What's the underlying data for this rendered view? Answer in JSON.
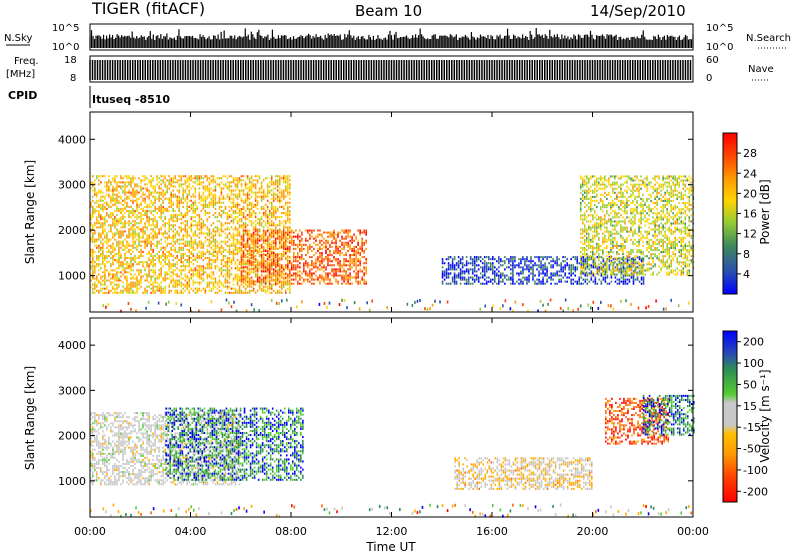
{
  "header": {
    "station": "TIGER (fitACF)",
    "beam": "Beam 10",
    "date": "14/Sep/2010"
  },
  "nsky": {
    "label": "N.Sky",
    "tick_top": "10^5",
    "tick_bottom": "10^0",
    "right_label": "N.Search",
    "right_top": "10^5",
    "right_bottom": "10^0"
  },
  "freq": {
    "label_line1": "Freq.",
    "label_line2": "[MHz]",
    "tick_top": "18",
    "tick_bottom": "8",
    "right_top": "60",
    "right_bottom": "0",
    "right_label": "Nave"
  },
  "cpid": {
    "label": "CPID",
    "value": "Ituseq -8510"
  },
  "chart_data": [
    {
      "type": "heatmap",
      "title": "",
      "xlabel": "Time UT",
      "ylabel": "Slant Range [km]",
      "xticks": [
        "00:00",
        "04:00",
        "08:00",
        "12:00",
        "16:00",
        "20:00",
        "00:00"
      ],
      "yticks": [
        "1000",
        "2000",
        "3000",
        "4000"
      ],
      "ylim": [
        200,
        4600
      ],
      "colorbar": {
        "label": "Power [dB]",
        "ticks": [
          "4",
          "8",
          "12",
          "16",
          "20",
          "24",
          "28"
        ],
        "range": [
          0,
          32
        ],
        "colors": [
          "#0000ff",
          "#2a4fb0",
          "#3e8a5a",
          "#9acd32",
          "#ffd400",
          "#ff9900",
          "#ff4400",
          "#ff0000"
        ]
      },
      "regions": [
        {
          "t0": 0.0,
          "t1": 8.0,
          "r0": 600,
          "r1": 3200,
          "power_mean": 20
        },
        {
          "t0": 6.0,
          "t1": 11.0,
          "r0": 800,
          "r1": 2000,
          "power_mean": 26
        },
        {
          "t0": 14.0,
          "t1": 22.0,
          "r0": 800,
          "r1": 1400,
          "power_mean": 4
        },
        {
          "t0": 19.5,
          "t1": 24.0,
          "r0": 1000,
          "r1": 3200,
          "power_mean": 16
        }
      ]
    },
    {
      "type": "heatmap",
      "title": "",
      "xlabel": "Time UT",
      "ylabel": "Slant Range [km]",
      "xticks": [
        "00:00",
        "04:00",
        "08:00",
        "12:00",
        "16:00",
        "20:00",
        "00:00"
      ],
      "yticks": [
        "1000",
        "2000",
        "3000",
        "4000"
      ],
      "ylim": [
        200,
        4600
      ],
      "colorbar": {
        "label": "Velocity [m s⁻¹]",
        "ticks": [
          "200",
          "100",
          "50",
          "15",
          "-15",
          "-50",
          "-100",
          "-200"
        ],
        "range": [
          -250,
          250
        ],
        "colors": [
          "#ff0000",
          "#ff6600",
          "#ffaa00",
          "#c8c8c8",
          "#c8c8c8",
          "#55cc33",
          "#2e8b57",
          "#0000ff"
        ]
      },
      "regions": [
        {
          "t0": 0.0,
          "t1": 6.0,
          "r0": 900,
          "r1": 2500,
          "velocity_mean": 0
        },
        {
          "t0": 3.0,
          "t1": 8.5,
          "r0": 1000,
          "r1": 2600,
          "velocity_mean": 180
        },
        {
          "t0": 14.5,
          "t1": 20.0,
          "r0": 800,
          "r1": 1500,
          "velocity_mean": -60
        },
        {
          "t0": 20.5,
          "t1": 23.0,
          "r0": 1800,
          "r1": 2800,
          "velocity_mean": -200
        },
        {
          "t0": 22.0,
          "t1": 24.0,
          "r0": 2000,
          "r1": 2900,
          "velocity_mean": 180
        }
      ]
    }
  ]
}
